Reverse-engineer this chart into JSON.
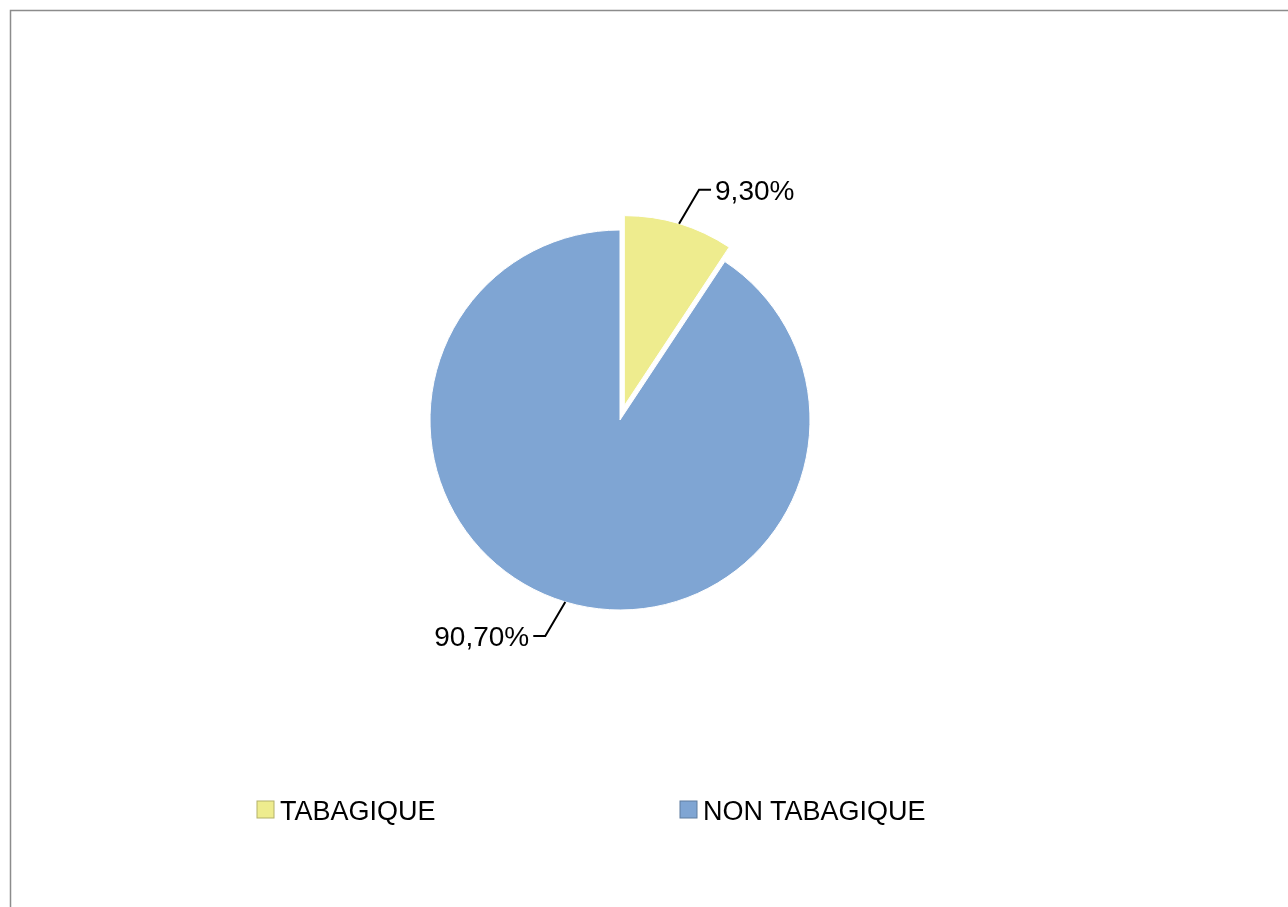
{
  "chart_data": {
    "type": "pie",
    "categories": [
      "TABAGIQUE",
      "NON TABAGIQUE"
    ],
    "values": [
      9.3,
      90.7
    ],
    "colors": [
      "#eeec8e",
      "#7fa5d3"
    ],
    "value_labels": [
      "9,30%",
      "90,70%"
    ],
    "legend": "bottom"
  }
}
